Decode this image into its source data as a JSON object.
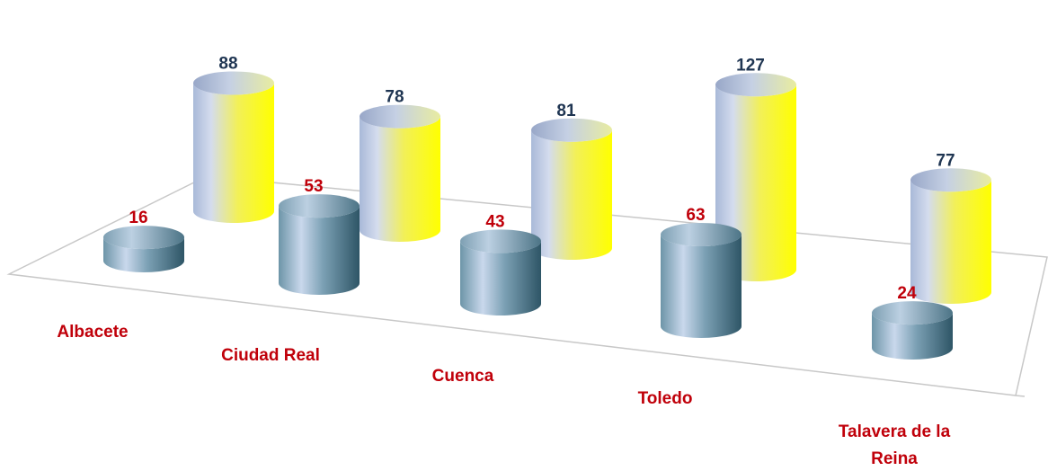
{
  "chart_data": {
    "type": "bar",
    "style": "3d-cylinder",
    "categories": [
      "Albacete",
      "Ciudad Real",
      "Cuenca",
      "Toledo",
      "Talavera de la Reina"
    ],
    "series": [
      {
        "values": [
          16,
          53,
          43,
          63,
          24
        ],
        "color": "#4a7688",
        "label_color": "#c0000a"
      },
      {
        "values": [
          88,
          78,
          81,
          127,
          77
        ],
        "color": "#f4f21a",
        "label_color": "#1f3552"
      }
    ],
    "data_labels": true,
    "grid": false,
    "legend": "none",
    "category_label_color": "#c0000a"
  }
}
